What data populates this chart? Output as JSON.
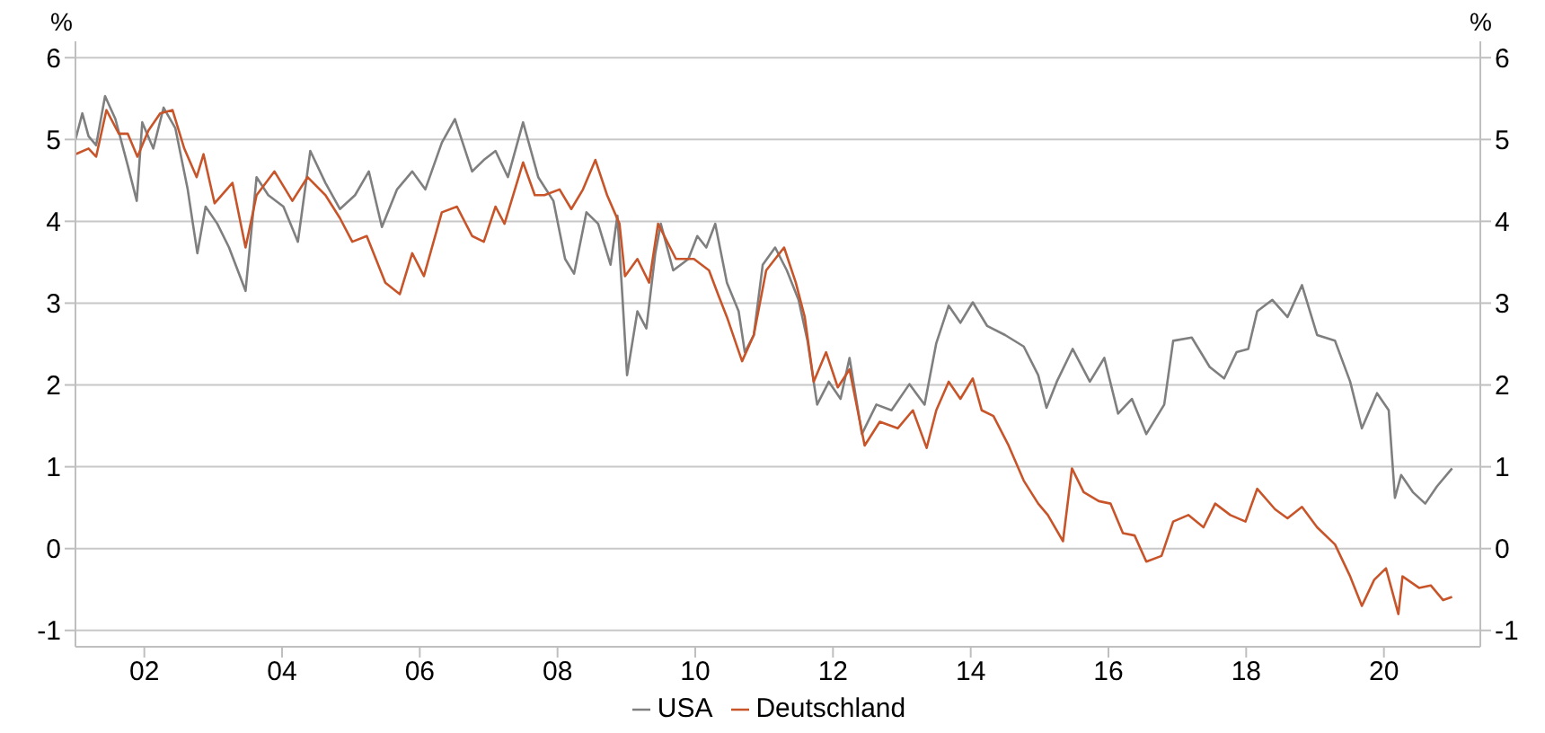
{
  "chart_data": {
    "type": "line",
    "ylabel": "%",
    "y2label": "%",
    "xlim": [
      2001,
      2021.4
    ],
    "xticks": [
      {
        "value": 2002,
        "label": "02"
      },
      {
        "value": 2004,
        "label": "04"
      },
      {
        "value": 2006,
        "label": "06"
      },
      {
        "value": 2008,
        "label": "08"
      },
      {
        "value": 2010,
        "label": "10"
      },
      {
        "value": 2012,
        "label": "12"
      },
      {
        "value": 2014,
        "label": "14"
      },
      {
        "value": 2016,
        "label": "16"
      },
      {
        "value": 2018,
        "label": "18"
      },
      {
        "value": 2020,
        "label": "20"
      }
    ],
    "ylim": [
      -1.2,
      6.2
    ],
    "yticks": [
      -1,
      0,
      1,
      2,
      3,
      4,
      5,
      6
    ],
    "y2lim": [
      -1.2,
      6.2
    ],
    "y2ticks": [
      -1,
      0,
      1,
      2,
      3,
      4,
      5,
      6
    ],
    "grid": "y",
    "legend": "bottom",
    "marker": "none",
    "line_style": "solid",
    "series": [
      {
        "name": "USA",
        "color": "#7f7f7f",
        "x": [
          2001.0,
          2001.1,
          2001.19,
          2001.3,
          2001.43,
          2001.58,
          2001.76,
          2001.89,
          2001.97,
          2002.13,
          2002.28,
          2002.45,
          2002.63,
          2002.77,
          2002.89,
          2003.06,
          2003.23,
          2003.47,
          2003.63,
          2003.8,
          2004.02,
          2004.23,
          2004.41,
          2004.63,
          2004.84,
          2005.06,
          2005.26,
          2005.45,
          2005.67,
          2005.89,
          2006.08,
          2006.32,
          2006.51,
          2006.76,
          2006.93,
          2007.1,
          2007.28,
          2007.5,
          2007.72,
          2007.94,
          2008.11,
          2008.24,
          2008.42,
          2008.59,
          2008.77,
          2008.87,
          2008.94,
          2009.01,
          2009.16,
          2009.29,
          2009.42,
          2009.5,
          2009.68,
          2009.9,
          2010.03,
          2010.16,
          2010.29,
          2010.46,
          2010.63,
          2010.72,
          2010.85,
          2010.98,
          2011.16,
          2011.33,
          2011.5,
          2011.63,
          2011.77,
          2011.94,
          2012.11,
          2012.24,
          2012.42,
          2012.63,
          2012.85,
          2013.11,
          2013.33,
          2013.5,
          2013.68,
          2013.85,
          2014.03,
          2014.24,
          2014.5,
          2014.77,
          2014.98,
          2015.1,
          2015.25,
          2015.48,
          2015.73,
          2015.94,
          2016.14,
          2016.34,
          2016.55,
          2016.81,
          2016.94,
          2017.21,
          2017.47,
          2017.68,
          2017.86,
          2018.03,
          2018.16,
          2018.38,
          2018.6,
          2018.81,
          2019.03,
          2019.29,
          2019.51,
          2019.68,
          2019.9,
          2020.07,
          2020.16,
          2020.25,
          2020.42,
          2020.6,
          2020.77,
          2020.99
        ],
        "values": [
          5.0,
          5.32,
          5.04,
          4.93,
          5.53,
          5.25,
          4.68,
          4.25,
          5.21,
          4.89,
          5.39,
          5.14,
          4.39,
          3.61,
          4.18,
          3.97,
          3.68,
          3.15,
          4.54,
          4.32,
          4.18,
          3.75,
          4.86,
          4.47,
          4.15,
          4.32,
          4.61,
          3.93,
          4.39,
          4.61,
          4.39,
          4.96,
          5.25,
          4.61,
          4.75,
          4.86,
          4.54,
          5.21,
          4.54,
          4.25,
          3.54,
          3.36,
          4.11,
          3.97,
          3.47,
          4.07,
          3.11,
          2.12,
          2.9,
          2.69,
          3.61,
          3.97,
          3.4,
          3.54,
          3.82,
          3.68,
          3.97,
          3.25,
          2.9,
          2.4,
          2.61,
          3.47,
          3.68,
          3.4,
          3.04,
          2.54,
          1.76,
          2.04,
          1.83,
          2.33,
          1.4,
          1.76,
          1.69,
          2.01,
          1.76,
          2.51,
          2.97,
          2.76,
          3.01,
          2.72,
          2.61,
          2.47,
          2.12,
          1.72,
          2.04,
          2.44,
          2.04,
          2.33,
          1.65,
          1.83,
          1.4,
          1.76,
          2.54,
          2.58,
          2.22,
          2.08,
          2.4,
          2.44,
          2.9,
          3.04,
          2.83,
          3.22,
          2.61,
          2.54,
          2.04,
          1.47,
          1.9,
          1.69,
          0.62,
          0.9,
          0.69,
          0.55,
          0.76,
          0.98
        ]
      },
      {
        "name": "Deutschland",
        "color": "#c8552a",
        "x": [
          2001.0,
          2001.19,
          2001.3,
          2001.45,
          2001.63,
          2001.76,
          2001.9,
          2002.06,
          2002.23,
          2002.41,
          2002.58,
          2002.76,
          2002.86,
          2003.02,
          2003.28,
          2003.47,
          2003.63,
          2003.89,
          2004.15,
          2004.37,
          2004.63,
          2004.84,
          2005.02,
          2005.23,
          2005.5,
          2005.71,
          2005.89,
          2006.06,
          2006.32,
          2006.54,
          2006.76,
          2006.93,
          2007.1,
          2007.23,
          2007.5,
          2007.67,
          2007.81,
          2008.03,
          2008.2,
          2008.37,
          2008.55,
          2008.72,
          2008.9,
          2008.98,
          2009.16,
          2009.33,
          2009.46,
          2009.72,
          2009.98,
          2010.2,
          2010.33,
          2010.46,
          2010.68,
          2010.85,
          2011.03,
          2011.29,
          2011.46,
          2011.59,
          2011.72,
          2011.9,
          2012.07,
          2012.24,
          2012.46,
          2012.68,
          2012.94,
          2013.16,
          2013.36,
          2013.5,
          2013.68,
          2013.85,
          2014.03,
          2014.16,
          2014.33,
          2014.55,
          2014.77,
          2014.98,
          2015.12,
          2015.34,
          2015.47,
          2015.64,
          2015.86,
          2016.03,
          2016.21,
          2016.38,
          2016.55,
          2016.77,
          2016.94,
          2017.16,
          2017.38,
          2017.55,
          2017.77,
          2017.99,
          2018.16,
          2018.42,
          2018.6,
          2018.81,
          2019.03,
          2019.29,
          2019.51,
          2019.68,
          2019.86,
          2020.03,
          2020.21,
          2020.27,
          2020.51,
          2020.68,
          2020.86,
          2020.99
        ],
        "values": [
          4.82,
          4.89,
          4.79,
          5.36,
          5.07,
          5.07,
          4.79,
          5.11,
          5.32,
          5.36,
          4.89,
          4.54,
          4.82,
          4.22,
          4.47,
          3.68,
          4.32,
          4.61,
          4.25,
          4.54,
          4.32,
          4.04,
          3.75,
          3.82,
          3.25,
          3.11,
          3.61,
          3.33,
          4.11,
          4.18,
          3.82,
          3.75,
          4.18,
          3.97,
          4.72,
          4.32,
          4.32,
          4.39,
          4.15,
          4.39,
          4.75,
          4.32,
          3.97,
          3.33,
          3.54,
          3.25,
          3.97,
          3.54,
          3.54,
          3.4,
          3.11,
          2.83,
          2.29,
          2.61,
          3.4,
          3.68,
          3.25,
          2.83,
          2.04,
          2.4,
          1.97,
          2.19,
          1.26,
          1.55,
          1.47,
          1.69,
          1.23,
          1.69,
          2.04,
          1.83,
          2.08,
          1.69,
          1.62,
          1.26,
          0.83,
          0.55,
          0.41,
          0.09,
          0.98,
          0.69,
          0.58,
          0.55,
          0.19,
          0.16,
          -0.16,
          -0.09,
          0.33,
          0.41,
          0.26,
          0.55,
          0.41,
          0.33,
          0.73,
          0.48,
          0.37,
          0.51,
          0.26,
          0.05,
          -0.34,
          -0.7,
          -0.38,
          -0.24,
          -0.8,
          -0.34,
          -0.48,
          -0.45,
          -0.63,
          -0.59
        ]
      }
    ]
  }
}
